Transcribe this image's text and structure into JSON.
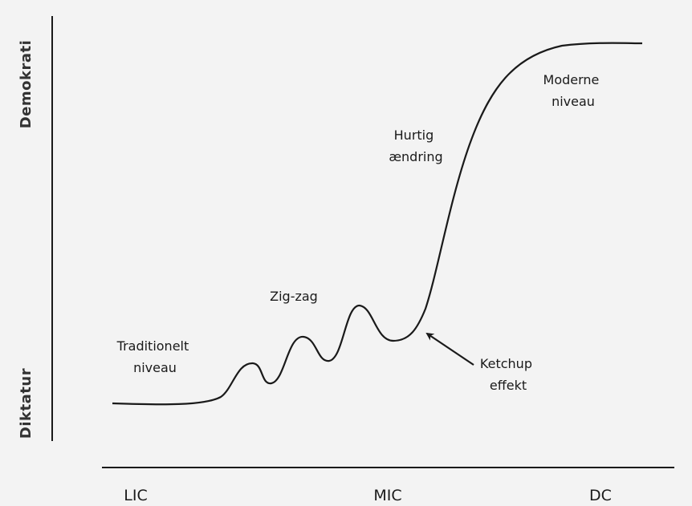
{
  "y_axis": {
    "top": "Demokrati",
    "bottom": "Diktatur"
  },
  "x_axis": {
    "labels": [
      "LIC",
      "MIC",
      "DC"
    ]
  },
  "annotations": [
    {
      "lines": [
        "Traditionelt",
        "niveau"
      ]
    },
    {
      "lines": [
        "Zig-zag"
      ]
    },
    {
      "lines": [
        "Hurtig",
        "ændring"
      ]
    },
    {
      "lines": [
        "Moderne",
        "niveau"
      ]
    },
    {
      "lines": [
        "Ketchup",
        "effekt"
      ]
    }
  ]
}
